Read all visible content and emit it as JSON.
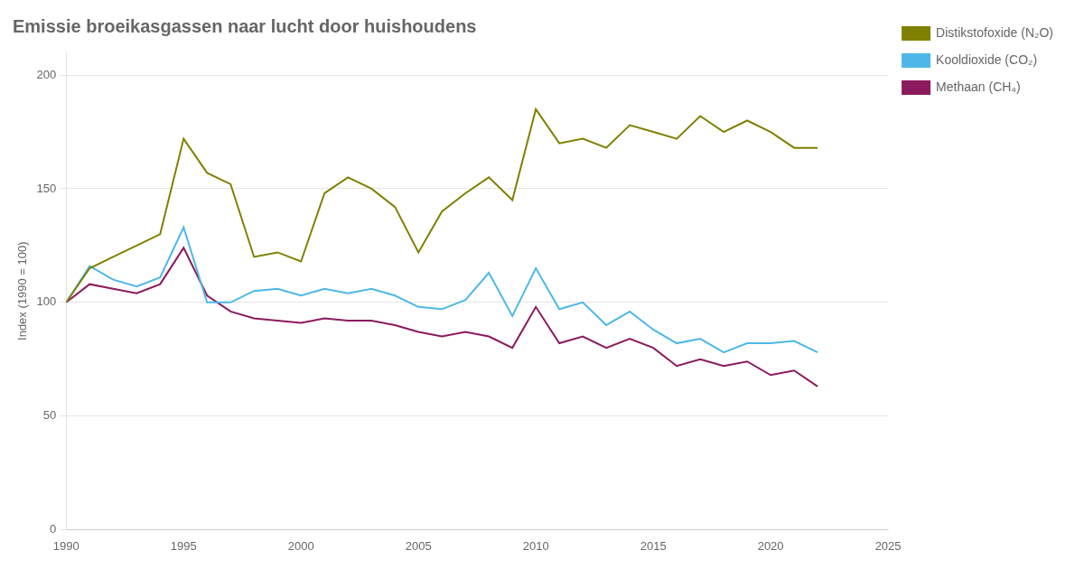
{
  "chart_data": {
    "type": "line",
    "title": "Emissie broeikasgassen naar lucht door huishoudens",
    "y_label": "Index (1990 = 100)",
    "x": [
      1990,
      1991,
      1992,
      1993,
      1994,
      1995,
      1996,
      1997,
      1998,
      1999,
      2000,
      2001,
      2002,
      2003,
      2004,
      2005,
      2006,
      2007,
      2008,
      2009,
      2010,
      2011,
      2012,
      2013,
      2014,
      2015,
      2016,
      2017,
      2018,
      2019,
      2020,
      2021,
      2022
    ],
    "series": [
      {
        "name": "Distikstofoxide (N₂O)",
        "color": "#808000",
        "values": [
          100,
          115,
          120,
          125,
          130,
          172,
          157,
          152,
          120,
          122,
          118,
          148,
          155,
          150,
          142,
          122,
          140,
          148,
          155,
          145,
          185,
          170,
          172,
          168,
          178,
          175,
          172,
          182,
          175,
          180,
          175,
          168,
          168
        ]
      },
      {
        "name": "Kooldioxide (CO₂)",
        "color": "#4db8e8",
        "values": [
          100,
          116,
          110,
          107,
          111,
          133,
          100,
          100,
          105,
          106,
          103,
          106,
          104,
          106,
          103,
          98,
          97,
          101,
          113,
          94,
          115,
          97,
          100,
          90,
          96,
          88,
          82,
          84,
          78,
          82,
          82,
          83,
          78
        ]
      },
      {
        "name": "Methaan (CH₄)",
        "color": "#8b1a5e",
        "values": [
          100,
          108,
          106,
          104,
          108,
          124,
          103,
          96,
          93,
          92,
          91,
          93,
          92,
          92,
          90,
          87,
          85,
          87,
          85,
          80,
          98,
          82,
          85,
          80,
          84,
          80,
          72,
          75,
          72,
          74,
          68,
          70,
          63
        ]
      }
    ],
    "xlim": [
      1990,
      2025
    ],
    "ylim": [
      0,
      210
    ],
    "xticks": [
      1990,
      1995,
      2000,
      2005,
      2010,
      2015,
      2020,
      2025
    ],
    "yticks": [
      0,
      50,
      100,
      150,
      200
    ],
    "grid": "y",
    "legend": "right"
  }
}
